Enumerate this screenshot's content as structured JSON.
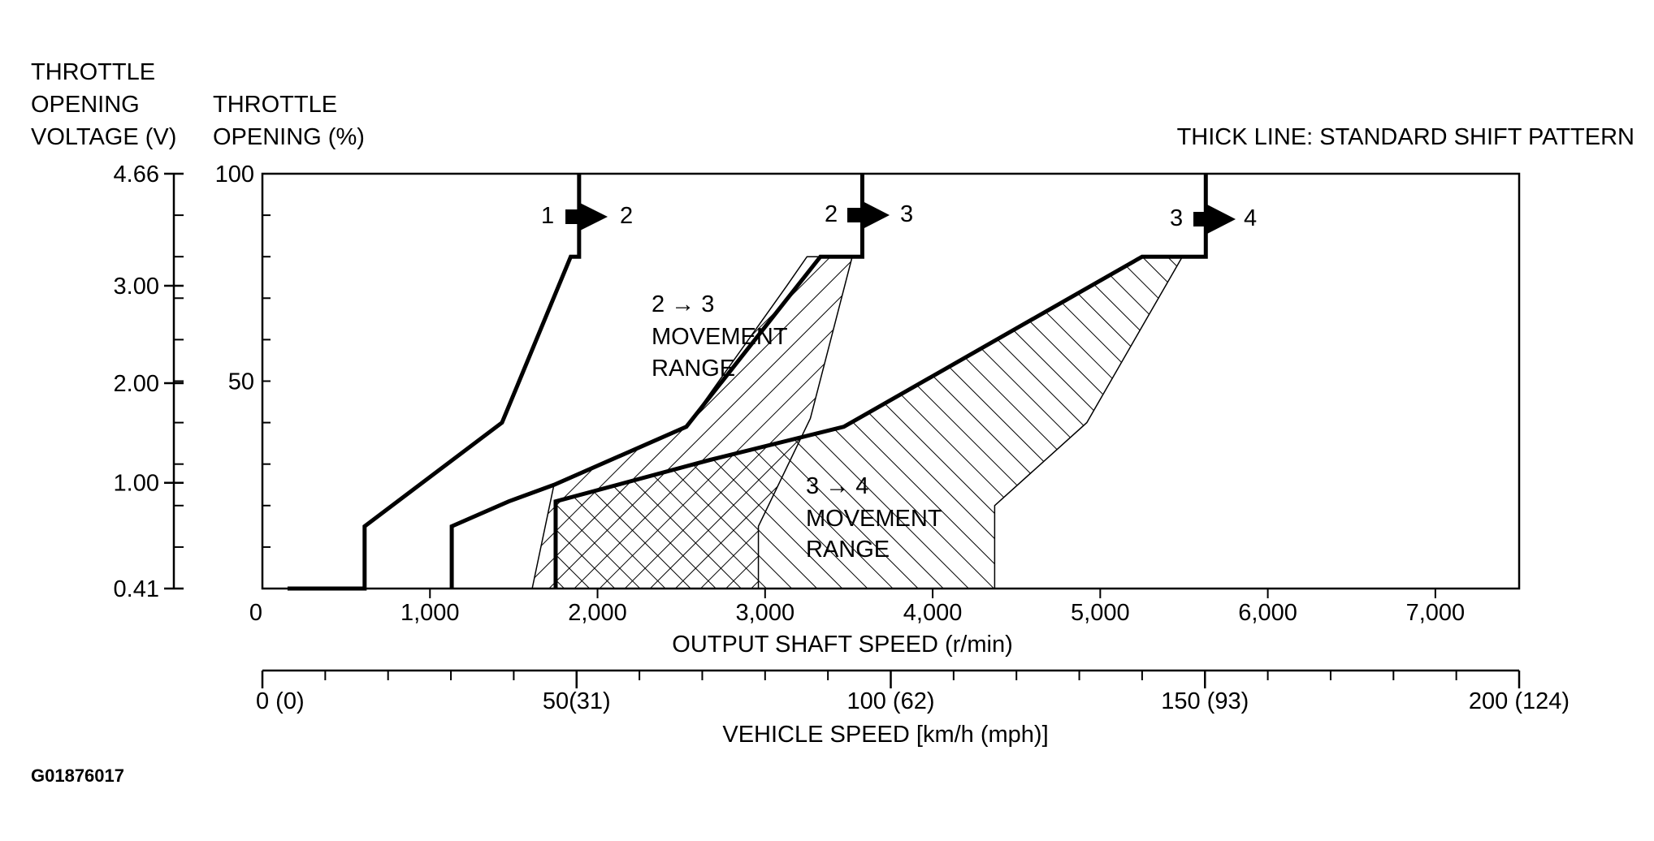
{
  "chart_data": {
    "type": "line",
    "title": "",
    "legend_note": "THICK LINE: STANDARD SHIFT PATTERN",
    "image_code": "G01876017",
    "left_axis": {
      "label_lines": [
        "THROTTLE",
        "OPENING",
        "VOLTAGE (V)"
      ],
      "ticks": [
        {
          "label": "4.66",
          "pct": 100
        },
        {
          "label": "3.00",
          "pct": 73
        },
        {
          "label": "2.00",
          "pct": 49.5
        },
        {
          "label": "1.00",
          "pct": 25.5
        },
        {
          "label": "0.41",
          "pct": 0
        }
      ],
      "minor_step_pct": 10
    },
    "y_axis": {
      "label_lines": [
        "THROTTLE",
        "OPENING (%)"
      ],
      "ylim": [
        0,
        100
      ],
      "ticks": [
        {
          "label": "100",
          "value": 100
        },
        {
          "label": "50",
          "value": 50
        }
      ]
    },
    "x_axis": {
      "label": "OUTPUT SHAFT SPEED (r/min)",
      "xlim": [
        0,
        7500
      ],
      "ticks": [
        {
          "label": "0",
          "value": 0
        },
        {
          "label": "1,000",
          "value": 1000
        },
        {
          "label": "2,000",
          "value": 2000
        },
        {
          "label": "3,000",
          "value": 3000
        },
        {
          "label": "4,000",
          "value": 4000
        },
        {
          "label": "5,000",
          "value": 5000
        },
        {
          "label": "6,000",
          "value": 6000
        },
        {
          "label": "7,000",
          "value": 7000
        }
      ]
    },
    "x2_axis": {
      "label": "VEHICLE SPEED [km/h (mph)]",
      "xlim": [
        0,
        200
      ],
      "major_ticks": [
        {
          "label": "0 (0)",
          "value": 0
        },
        {
          "label": "50(31)",
          "value": 50
        },
        {
          "label": "100 (62)",
          "value": 100
        },
        {
          "label": "150 (93)",
          "value": 150
        },
        {
          "label": "200 (124)",
          "value": 200
        }
      ],
      "minor_step": 10
    },
    "series": [
      {
        "name": "1 → 2",
        "label_from": "1",
        "label_to": "2",
        "x": [
          150,
          610,
          610,
          1430,
          1840,
          1890,
          1890
        ],
        "y": [
          0,
          0,
          15,
          40,
          80,
          80,
          100
        ]
      },
      {
        "name": "2 → 3",
        "label_from": "2",
        "label_to": "3",
        "x": [
          1130,
          1130,
          1470,
          1740,
          2530,
          3330,
          3580,
          3580
        ],
        "y": [
          0,
          15,
          21,
          25,
          39,
          80,
          80,
          100
        ]
      },
      {
        "name": "3 → 4",
        "label_from": "3",
        "label_to": "4",
        "x": [
          1750,
          1750,
          2670,
          3470,
          5250,
          5630,
          5630
        ],
        "y": [
          0,
          21,
          31,
          39,
          80,
          80,
          100
        ]
      }
    ],
    "ranges": [
      {
        "label_lines": [
          "2 → 3",
          "MOVEMENT",
          "RANGE"
        ],
        "x": [
          1610,
          1740,
          2530,
          3130,
          3250,
          3520,
          3270,
          2960,
          2960
        ],
        "y": [
          0,
          25,
          39,
          73,
          80,
          80,
          41,
          15,
          0
        ]
      },
      {
        "label_lines": [
          "3 → 4",
          "MOVEMENT",
          "RANGE"
        ],
        "x": [
          1750,
          1750,
          3470,
          5250,
          5490,
          4920,
          4370,
          4370
        ],
        "y": [
          0,
          21,
          39,
          80,
          80,
          40,
          20,
          0
        ]
      }
    ]
  }
}
